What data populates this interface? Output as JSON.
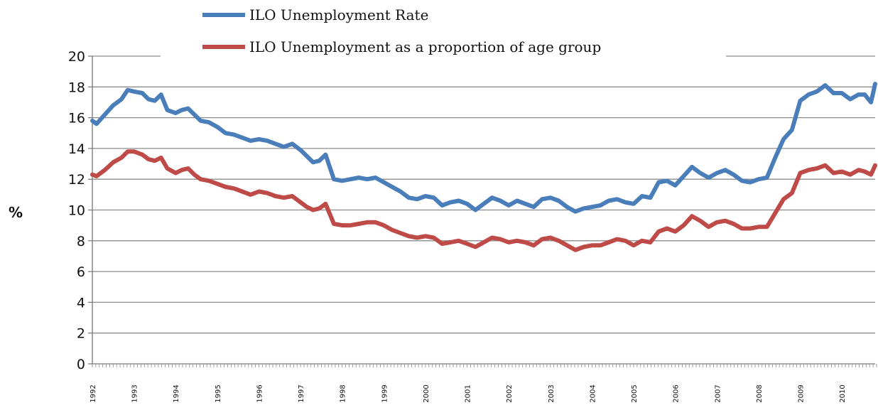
{
  "chart_data": {
    "type": "line",
    "ylabel": "%",
    "ylim": [
      0,
      20
    ],
    "ytick_step": 2,
    "ytick_labels": [
      "0",
      "2",
      "4",
      "6",
      "8",
      "10",
      "12",
      "14",
      "16",
      "18",
      "20"
    ],
    "xlim": [
      1992,
      2010.8
    ],
    "xtick_labels": [
      "1992",
      "1993",
      "1994",
      "1995",
      "1996",
      "1997",
      "1998",
      "1999",
      "2000",
      "2001",
      "2002",
      "2003",
      "2004",
      "2005",
      "2006",
      "2007",
      "2008",
      "2009",
      "2010"
    ],
    "grid": true,
    "legend_position": "top",
    "series": [
      {
        "name": "ILO Unemployment Rate",
        "color": "#4a7ebb",
        "x": [
          1992.0,
          1992.1,
          1992.3,
          1992.5,
          1992.7,
          1992.85,
          1993.0,
          1993.2,
          1993.35,
          1993.5,
          1993.65,
          1993.8,
          1994.0,
          1994.15,
          1994.3,
          1994.45,
          1994.6,
          1994.8,
          1995.0,
          1995.2,
          1995.4,
          1995.6,
          1995.8,
          1996.0,
          1996.2,
          1996.4,
          1996.6,
          1996.8,
          1997.0,
          1997.15,
          1997.3,
          1997.45,
          1997.6,
          1997.8,
          1998.0,
          1998.2,
          1998.4,
          1998.6,
          1998.8,
          1999.0,
          1999.2,
          1999.4,
          1999.6,
          1999.8,
          2000.0,
          2000.2,
          2000.4,
          2000.6,
          2000.8,
          2001.0,
          2001.2,
          2001.4,
          2001.6,
          2001.8,
          2002.0,
          2002.2,
          2002.4,
          2002.6,
          2002.8,
          2003.0,
          2003.2,
          2003.4,
          2003.6,
          2003.8,
          2004.0,
          2004.2,
          2004.4,
          2004.6,
          2004.8,
          2005.0,
          2005.2,
          2005.4,
          2005.6,
          2005.8,
          2006.0,
          2006.2,
          2006.4,
          2006.6,
          2006.8,
          2007.0,
          2007.2,
          2007.4,
          2007.6,
          2007.8,
          2008.0,
          2008.2,
          2008.4,
          2008.6,
          2008.8,
          2009.0,
          2009.2,
          2009.4,
          2009.6,
          2009.8,
          2010.0,
          2010.2,
          2010.4,
          2010.55,
          2010.7,
          2010.8
        ],
        "y": [
          15.8,
          15.6,
          16.2,
          16.8,
          17.2,
          17.8,
          17.7,
          17.6,
          17.2,
          17.1,
          17.5,
          16.5,
          16.3,
          16.5,
          16.6,
          16.2,
          15.8,
          15.7,
          15.4,
          15.0,
          14.9,
          14.7,
          14.5,
          14.6,
          14.5,
          14.3,
          14.1,
          14.3,
          13.9,
          13.5,
          13.1,
          13.2,
          13.6,
          12.0,
          11.9,
          12.0,
          12.1,
          12.0,
          12.1,
          11.8,
          11.5,
          11.2,
          10.8,
          10.7,
          10.9,
          10.8,
          10.3,
          10.5,
          10.6,
          10.4,
          10.0,
          10.4,
          10.8,
          10.6,
          10.3,
          10.6,
          10.4,
          10.2,
          10.7,
          10.8,
          10.6,
          10.2,
          9.9,
          10.1,
          10.2,
          10.3,
          10.6,
          10.7,
          10.5,
          10.4,
          10.9,
          10.8,
          11.8,
          11.9,
          11.6,
          12.2,
          12.8,
          12.4,
          12.1,
          12.4,
          12.6,
          12.3,
          11.9,
          11.8,
          12.0,
          12.1,
          13.4,
          14.6,
          15.2,
          17.1,
          17.5,
          17.7,
          18.1,
          17.6,
          17.6,
          17.2,
          17.5,
          17.5,
          17.0,
          18.2
        ],
        "width": 6
      },
      {
        "name": "ILO Unemployment as a proportion of age group",
        "color": "#be4b48",
        "x": [
          1992.0,
          1992.1,
          1992.3,
          1992.5,
          1992.7,
          1992.85,
          1993.0,
          1993.2,
          1993.35,
          1993.5,
          1993.65,
          1993.8,
          1994.0,
          1994.15,
          1994.3,
          1994.45,
          1994.6,
          1994.8,
          1995.0,
          1995.2,
          1995.4,
          1995.6,
          1995.8,
          1996.0,
          1996.2,
          1996.4,
          1996.6,
          1996.8,
          1997.0,
          1997.15,
          1997.3,
          1997.45,
          1997.6,
          1997.8,
          1998.0,
          1998.2,
          1998.4,
          1998.6,
          1998.8,
          1999.0,
          1999.2,
          1999.4,
          1999.6,
          1999.8,
          2000.0,
          2000.2,
          2000.4,
          2000.6,
          2000.8,
          2001.0,
          2001.2,
          2001.4,
          2001.6,
          2001.8,
          2002.0,
          2002.2,
          2002.4,
          2002.6,
          2002.8,
          2003.0,
          2003.2,
          2003.4,
          2003.6,
          2003.8,
          2004.0,
          2004.2,
          2004.4,
          2004.6,
          2004.8,
          2005.0,
          2005.2,
          2005.4,
          2005.6,
          2005.8,
          2006.0,
          2006.2,
          2006.4,
          2006.6,
          2006.8,
          2007.0,
          2007.2,
          2007.4,
          2007.6,
          2007.8,
          2008.0,
          2008.2,
          2008.4,
          2008.6,
          2008.8,
          2009.0,
          2009.2,
          2009.4,
          2009.6,
          2009.8,
          2010.0,
          2010.2,
          2010.4,
          2010.55,
          2010.7,
          2010.8
        ],
        "y": [
          12.3,
          12.2,
          12.6,
          13.1,
          13.4,
          13.8,
          13.8,
          13.6,
          13.3,
          13.2,
          13.4,
          12.7,
          12.4,
          12.6,
          12.7,
          12.3,
          12.0,
          11.9,
          11.7,
          11.5,
          11.4,
          11.2,
          11.0,
          11.2,
          11.1,
          10.9,
          10.8,
          10.9,
          10.5,
          10.2,
          10.0,
          10.1,
          10.4,
          9.1,
          9.0,
          9.0,
          9.1,
          9.2,
          9.2,
          9.0,
          8.7,
          8.5,
          8.3,
          8.2,
          8.3,
          8.2,
          7.8,
          7.9,
          8.0,
          7.8,
          7.6,
          7.9,
          8.2,
          8.1,
          7.9,
          8.0,
          7.9,
          7.7,
          8.1,
          8.2,
          8.0,
          7.7,
          7.4,
          7.6,
          7.7,
          7.7,
          7.9,
          8.1,
          8.0,
          7.7,
          8.0,
          7.9,
          8.6,
          8.8,
          8.6,
          9.0,
          9.6,
          9.3,
          8.9,
          9.2,
          9.3,
          9.1,
          8.8,
          8.8,
          8.9,
          8.9,
          9.8,
          10.7,
          11.1,
          12.4,
          12.6,
          12.7,
          12.9,
          12.4,
          12.5,
          12.3,
          12.6,
          12.5,
          12.3,
          12.9
        ],
        "width": 6
      }
    ]
  }
}
